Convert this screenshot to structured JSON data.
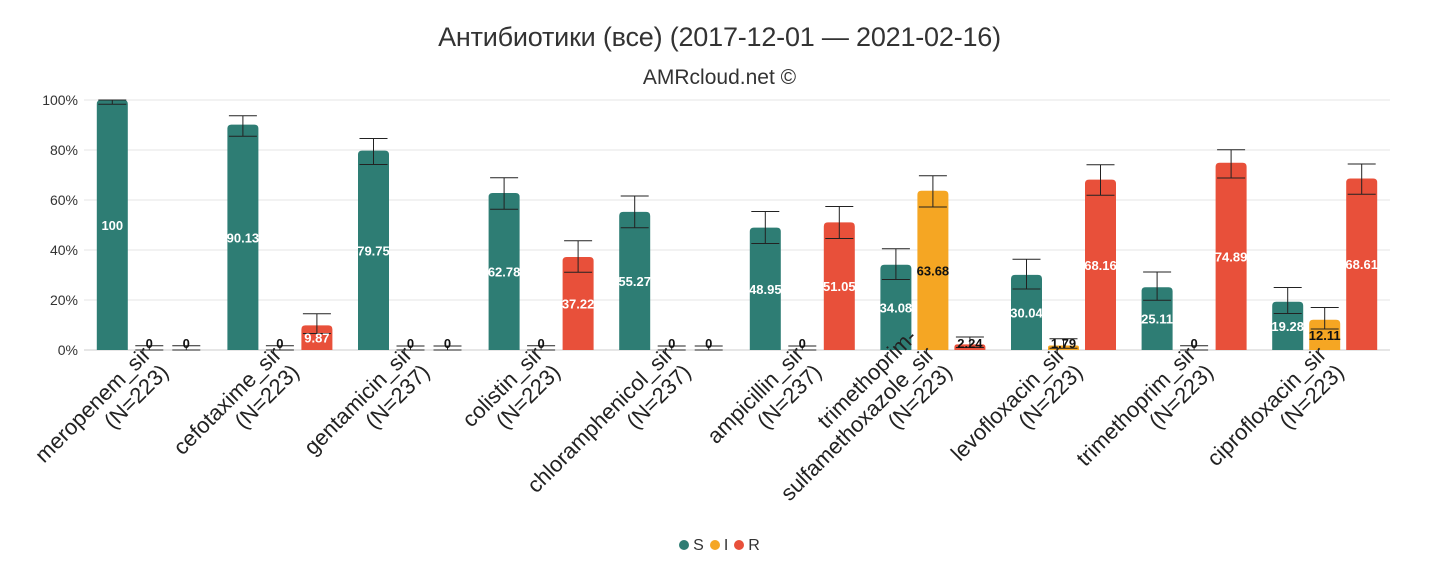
{
  "chart_data": {
    "type": "bar",
    "title": "Антибиотики (все) (2017-12-01 — 2021-02-16)",
    "subtitle": "AMRcloud.net ©",
    "ylim": [
      0,
      100
    ],
    "yticks": [
      "0%",
      "20%",
      "40%",
      "60%",
      "80%",
      "100%"
    ],
    "grid": true,
    "legend_placement": "bottom-center",
    "categories": [
      {
        "line1": "meropenem_sir",
        "line2": "(N=223)"
      },
      {
        "line1": "cefotaxime_sir",
        "line2": "(N=223)"
      },
      {
        "line1": "gentamicin_sir",
        "line2": "(N=237)"
      },
      {
        "line1": "colistin_sir",
        "line2": "(N=223)"
      },
      {
        "line1": "chloramphenicol_sir",
        "line2": "(N=237)"
      },
      {
        "line1": "ampicillin_sir",
        "line2": "(N=237)"
      },
      {
        "line1": "trimethoprim-",
        "line2": "sulfamethoxazole_sir",
        "line3": "(N=223)"
      },
      {
        "line1": "levofloxacin_sir",
        "line2": "(N=223)"
      },
      {
        "line1": "trimethoprim_sir",
        "line2": "(N=223)"
      },
      {
        "line1": "ciprofloxacin_sir",
        "line2": "(N=223)"
      }
    ],
    "series": [
      {
        "name": "S",
        "color": "#2e7d74",
        "values": [
          100,
          90.13,
          79.75,
          62.78,
          55.27,
          48.95,
          34.08,
          30.04,
          25.11,
          19.28
        ],
        "labels": [
          "100",
          "90.13",
          "79.75",
          "62.78",
          "55.27",
          "48.95",
          "34.08",
          "30.04",
          "25.11",
          "19.28"
        ],
        "ci": [
          [
            98.3,
            100
          ],
          [
            85.5,
            93.7
          ],
          [
            74.2,
            84.6
          ],
          [
            56.3,
            68.9
          ],
          [
            48.9,
            61.6
          ],
          [
            42.6,
            55.4
          ],
          [
            28.2,
            40.5
          ],
          [
            24.4,
            36.3
          ],
          [
            19.9,
            31.2
          ],
          [
            14.6,
            25.0
          ]
        ]
      },
      {
        "name": "I",
        "color": "#f5a623",
        "values": [
          0,
          0,
          0,
          0,
          0,
          0,
          63.68,
          1.79,
          0,
          12.11
        ],
        "labels": [
          "0",
          "0",
          "0",
          "0",
          "0",
          "0",
          "63.68",
          "1.79",
          "0",
          "12.11"
        ],
        "ci": [
          [
            0,
            1.7
          ],
          [
            0,
            1.7
          ],
          [
            0,
            1.6
          ],
          [
            0,
            1.7
          ],
          [
            0,
            1.6
          ],
          [
            0,
            1.6
          ],
          [
            57.2,
            69.7
          ],
          [
            0.7,
            4.5
          ],
          [
            0,
            1.7
          ],
          [
            8.4,
            17.0
          ]
        ]
      },
      {
        "name": "R",
        "color": "#e8503a",
        "values": [
          0,
          9.87,
          0,
          37.22,
          0,
          51.05,
          2.24,
          68.16,
          74.89,
          68.61
        ],
        "labels": [
          "0",
          "9.87",
          "0",
          "37.22",
          "0",
          "51.05",
          "2.24",
          "68.16",
          "74.89",
          "68.61"
        ],
        "ci": [
          [
            0,
            1.7
          ],
          [
            6.6,
            14.5
          ],
          [
            0,
            1.6
          ],
          [
            31.1,
            43.7
          ],
          [
            0,
            1.6
          ],
          [
            44.6,
            57.4
          ],
          [
            1.0,
            5.2
          ],
          [
            61.9,
            74.1
          ],
          [
            68.8,
            80.1
          ],
          [
            62.3,
            74.4
          ]
        ]
      }
    ]
  }
}
